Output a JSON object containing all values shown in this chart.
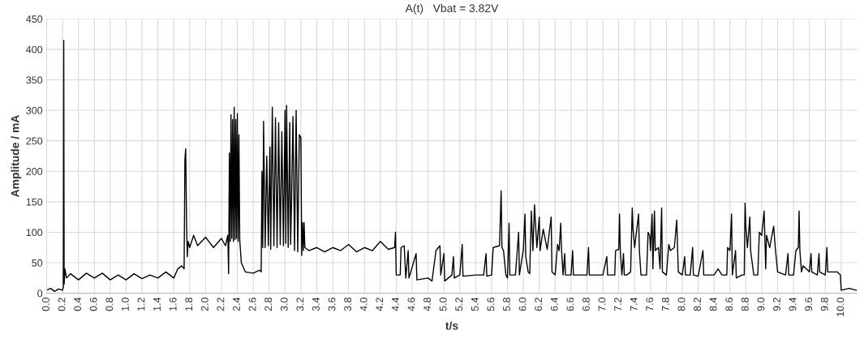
{
  "chart_data": {
    "type": "line",
    "title": "A(t)   Vbat = 3.82V",
    "xlabel": "t/s",
    "ylabel": "Amplitude / mA",
    "xlim": [
      0,
      10.2
    ],
    "ylim": [
      0,
      450
    ],
    "yticks": [
      0,
      50,
      100,
      150,
      200,
      250,
      300,
      350,
      400,
      450
    ],
    "xticks": [
      {
        "value": 0,
        "label": "0.0"
      },
      {
        "value": 0.2,
        "label": "0.2"
      },
      {
        "value": 0.4,
        "label": "0.4"
      },
      {
        "value": 0.6,
        "label": "0.6"
      },
      {
        "value": 0.8,
        "label": "0.8"
      },
      {
        "value": 1,
        "label": "1.0"
      },
      {
        "value": 1.2,
        "label": "1.2"
      },
      {
        "value": 1.4,
        "label": "1.4"
      },
      {
        "value": 1.6,
        "label": "1.6"
      },
      {
        "value": 1.8,
        "label": "1.8"
      },
      {
        "value": 2,
        "label": "2.0"
      },
      {
        "value": 2.2,
        "label": "2.2"
      },
      {
        "value": 2.4,
        "label": "2.4"
      },
      {
        "value": 2.6,
        "label": "2.6"
      },
      {
        "value": 2.8,
        "label": "2.8"
      },
      {
        "value": 3,
        "label": "3.0"
      },
      {
        "value": 3.2,
        "label": "3.2"
      },
      {
        "value": 3.4,
        "label": "3.4"
      },
      {
        "value": 3.6,
        "label": "3.6"
      },
      {
        "value": 3.8,
        "label": "3.8"
      },
      {
        "value": 4,
        "label": "4.0"
      },
      {
        "value": 4.2,
        "label": "4.2"
      },
      {
        "value": 4.4,
        "label": "4.4"
      },
      {
        "value": 4.6,
        "label": "4.6"
      },
      {
        "value": 4.8,
        "label": "4.8"
      },
      {
        "value": 5,
        "label": "5.0"
      },
      {
        "value": 5.2,
        "label": "5.2"
      },
      {
        "value": 5.4,
        "label": "5.4"
      },
      {
        "value": 5.6,
        "label": "5.6"
      },
      {
        "value": 5.8,
        "label": "5.8"
      },
      {
        "value": 6,
        "label": "6.0"
      },
      {
        "value": 6.2,
        "label": "6.2"
      },
      {
        "value": 6.4,
        "label": "6.4"
      },
      {
        "value": 6.6,
        "label": "6.6"
      },
      {
        "value": 6.8,
        "label": "6.8"
      },
      {
        "value": 7,
        "label": "7.0"
      },
      {
        "value": 7.2,
        "label": "7.2"
      },
      {
        "value": 7.4,
        "label": "7.4"
      },
      {
        "value": 7.6,
        "label": "7.6"
      },
      {
        "value": 7.8,
        "label": "7.8"
      },
      {
        "value": 8,
        "label": "8.0"
      },
      {
        "value": 8.2,
        "label": "8.2"
      },
      {
        "value": 8.4,
        "label": "8.4"
      },
      {
        "value": 8.6,
        "label": "8.6"
      },
      {
        "value": 8.8,
        "label": "8.8"
      },
      {
        "value": 9,
        "label": "9.0"
      },
      {
        "value": 9.2,
        "label": "9.2"
      },
      {
        "value": 9.4,
        "label": "9.4"
      },
      {
        "value": 9.6,
        "label": "9.6"
      },
      {
        "value": 9.8,
        "label": "9.8"
      },
      {
        "value": 10,
        "label": "10.0"
      }
    ],
    "grid": true,
    "series": [
      {
        "color": "#000000",
        "x": [
          0,
          0.05,
          0.1,
          0.15,
          0.2,
          0.21,
          0.215,
          0.22,
          0.23,
          0.25,
          0.3,
          0.4,
          0.5,
          0.6,
          0.7,
          0.8,
          0.9,
          1.0,
          1.1,
          1.2,
          1.3,
          1.4,
          1.5,
          1.6,
          1.65,
          1.7,
          1.73,
          1.74,
          1.75,
          1.76,
          1.77,
          1.78,
          1.8,
          1.85,
          1.9,
          2.0,
          2.1,
          2.2,
          2.25,
          2.28,
          2.29,
          2.3,
          2.31,
          2.32,
          2.33,
          2.34,
          2.35,
          2.36,
          2.37,
          2.38,
          2.39,
          2.4,
          2.41,
          2.42,
          2.43,
          2.45,
          2.5,
          2.6,
          2.68,
          2.7,
          2.71,
          2.72,
          2.73,
          2.75,
          2.77,
          2.79,
          2.81,
          2.82,
          2.84,
          2.86,
          2.88,
          2.9,
          2.92,
          2.94,
          2.96,
          2.98,
          3.0,
          3.01,
          3.02,
          3.04,
          3.06,
          3.07,
          3.08,
          3.1,
          3.12,
          3.14,
          3.16,
          3.18,
          3.2,
          3.21,
          3.22,
          3.23,
          3.24,
          3.25,
          3.3,
          3.4,
          3.5,
          3.6,
          3.7,
          3.8,
          3.9,
          4.0,
          4.1,
          4.2,
          4.3,
          4.38,
          4.39,
          4.4,
          4.45,
          4.46,
          4.5,
          4.52,
          4.55,
          4.56,
          4.65,
          4.66,
          4.8,
          4.85,
          4.9,
          4.95,
          4.96,
          5.0,
          5.01,
          5.1,
          5.12,
          5.13,
          5.2,
          5.23,
          5.24,
          5.4,
          5.5,
          5.53,
          5.54,
          5.6,
          5.62,
          5.7,
          5.72,
          5.73,
          5.75,
          5.78,
          5.8,
          5.82,
          5.83,
          5.9,
          5.94,
          5.95,
          6.0,
          6.02,
          6.03,
          6.06,
          6.08,
          6.1,
          6.12,
          6.14,
          6.15,
          6.17,
          6.2,
          6.21,
          6.25,
          6.3,
          6.35,
          6.36,
          6.4,
          6.43,
          6.45,
          6.47,
          6.48,
          6.5,
          6.52,
          6.53,
          6.6,
          6.62,
          6.63,
          6.8,
          6.82,
          6.83,
          7.0,
          7.05,
          7.06,
          7.15,
          7.16,
          7.2,
          7.21,
          7.22,
          7.24,
          7.26,
          7.27,
          7.3,
          7.35,
          7.37,
          7.38,
          7.4,
          7.45,
          7.46,
          7.48,
          7.55,
          7.57,
          7.59,
          7.6,
          7.62,
          7.63,
          7.65,
          7.66,
          7.7,
          7.72,
          7.74,
          7.75,
          7.8,
          7.83,
          7.85,
          7.9,
          7.93,
          7.95,
          8.0,
          8.03,
          8.04,
          8.1,
          8.13,
          8.14,
          8.2,
          8.26,
          8.27,
          8.4,
          8.45,
          8.5,
          8.56,
          8.57,
          8.6,
          8.62,
          8.63,
          8.67,
          8.68,
          8.75,
          8.78,
          8.79,
          8.8,
          8.82,
          8.85,
          8.86,
          8.9,
          8.95,
          8.97,
          9.0,
          9.03,
          9.05,
          9.06,
          9.1,
          9.15,
          9.17,
          9.2,
          9.3,
          9.33,
          9.34,
          9.4,
          9.43,
          9.46,
          9.47,
          9.48,
          9.5,
          9.52,
          9.6,
          9.62,
          9.63,
          9.7,
          9.72,
          9.73,
          9.8,
          9.82,
          9.83,
          9.95,
          9.99,
          10.0,
          10.1,
          10.19
        ],
        "values": [
          5,
          8,
          3,
          7,
          5,
          10,
          415,
          15,
          40,
          25,
          32,
          22,
          33,
          25,
          33,
          22,
          30,
          22,
          32,
          24,
          30,
          25,
          35,
          25,
          40,
          45,
          40,
          220,
          237,
          120,
          60,
          85,
          75,
          95,
          78,
          92,
          75,
          90,
          78,
          95,
          32,
          230,
          85,
          293,
          90,
          285,
          85,
          305,
          88,
          285,
          90,
          295,
          85,
          260,
          88,
          50,
          35,
          33,
          38,
          35,
          200,
          75,
          282,
          75,
          225,
          78,
          240,
          72,
          305,
          78,
          288,
          75,
          280,
          80,
          265,
          78,
          300,
          82,
          308,
          75,
          280,
          80,
          135,
          290,
          70,
          300,
          68,
          260,
          255,
          62,
          116,
          70,
          116,
          75,
          70,
          75,
          68,
          75,
          70,
          80,
          68,
          75,
          70,
          85,
          72,
          75,
          100,
          30,
          30,
          75,
          78,
          25,
          70,
          25,
          65,
          22,
          25,
          20,
          70,
          78,
          30,
          65,
          20,
          30,
          60,
          25,
          30,
          80,
          28,
          30,
          30,
          65,
          28,
          30,
          75,
          78,
          168,
          75,
          70,
          30,
          25,
          115,
          30,
          30,
          100,
          30,
          72,
          130,
          60,
          35,
          32,
          135,
          70,
          145,
          120,
          75,
          125,
          70,
          105,
          72,
          125,
          35,
          30,
          80,
          70,
          115,
          72,
          30,
          65,
          30,
          30,
          70,
          30,
          30,
          75,
          30,
          30,
          60,
          30,
          30,
          70,
          72,
          130,
          70,
          30,
          65,
          30,
          30,
          35,
          140,
          105,
          75,
          130,
          70,
          30,
          30,
          100,
          95,
          70,
          130,
          40,
          135,
          70,
          75,
          40,
          140,
          35,
          30,
          80,
          70,
          75,
          120,
          35,
          30,
          60,
          30,
          30,
          75,
          30,
          28,
          70,
          30,
          30,
          40,
          30,
          30,
          75,
          70,
          130,
          30,
          70,
          25,
          30,
          30,
          148,
          110,
          75,
          125,
          70,
          30,
          30,
          100,
          95,
          135,
          40,
          95,
          75,
          110,
          75,
          35,
          30,
          65,
          30,
          30,
          70,
          75,
          135,
          70,
          35,
          45,
          35,
          65,
          35,
          30,
          65,
          35,
          30,
          75,
          35,
          35,
          30,
          5,
          8,
          5
        ]
      }
    ]
  }
}
